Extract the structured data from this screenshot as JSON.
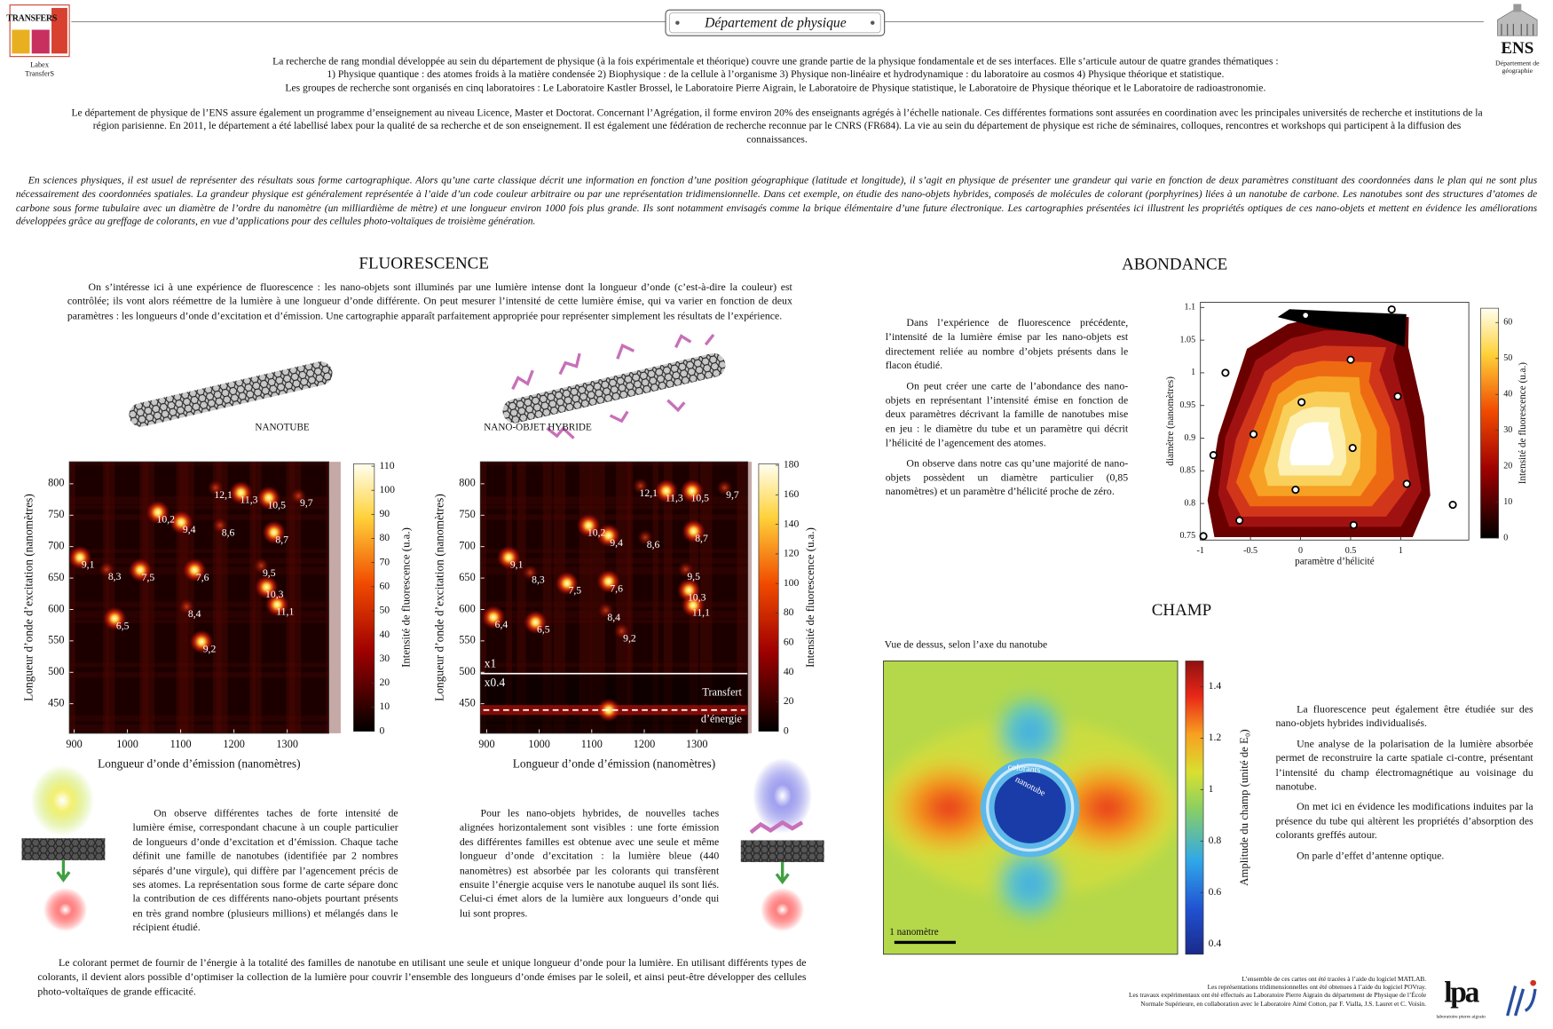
{
  "header": {
    "title": "Département de physique",
    "left_logo": {
      "mark": "TRANSFERS",
      "caption": [
        "Labex",
        "TransferS"
      ]
    },
    "right_logo": {
      "mark": "ENS",
      "caption": [
        "Département de",
        "géographie"
      ]
    }
  },
  "intro": {
    "paragraphs": [
      "La recherche de rang mondial développée au sein du département de physique (à la fois expérimentale et théorique) couvre une grande partie de la physique fondamentale et de ses interfaces. Elle s’articule autour de quatre grandes thématiques :",
      "1) Physique quantique : des atomes froids à la matière condensée 2) Biophysique : de la cellule à l’organisme 3)  Physique non-linéaire et hydrodynamique : du laboratoire au cosmos 4)  Physique théorique et statistique.",
      "Les groupes de recherche sont organisés en cinq laboratoires : Le Laboratoire Kastler Brossel, le Laboratoire Pierre Aigrain, le Laboratoire de Physique statistique, le Laboratoire de Physique théorique et le Laboratoire de radioastronomie.",
      "Le département de physique de l’ENS assure également un programme d’enseignement au niveau Licence, Master et Doctorat. Concernant l’Agrégation, il forme environ 20% des enseignants agrégés à l’échelle nationale. Ces différentes formations sont assurées en coordination avec les principales universités de recherche et institutions de la région parisienne. En 2011, le département a été labellisé labex pour la qualité de sa recherche et de son enseignement. Il est également une fédération de recherche reconnue par le CNRS (FR684). La vie au sein du département de physique est riche de séminaires, colloques, rencontres et workshops qui participent à la diffusion des connaissances."
    ],
    "italic": "En sciences physiques, il est usuel de représenter des résultats sous forme cartographique. Alors qu’une carte classique décrit une information en fonction d’une position géographique (latitude et longitude), il s’agit en physique de présenter une grandeur qui varie en fonction de deux paramètres constituant des coordonnées dans le plan qui ne sont plus nécessairement des coordonnées spatiales. La grandeur physique est généralement représentée à l’aide d’un code couleur arbitraire ou par une représentation tridimensionnelle. Dans cet exemple, on étudie des nano-objets hybrides, composés de molécules de colorant (porphyrines) liées à un nanotube de carbone. Les nanotubes sont des structures d’atomes de carbone sous forme tubulaire avec un diamètre de l’ordre du nanomètre (un milliardième de mètre) et une longueur environ 1000 fois plus grande. Ils sont notamment envisagés comme la brique  élémentaire d’une future électronique. Les cartographies présentées ici illustrent les propriétés optiques de ces nano-objets et mettent en évidence les améliorations développées grâce au greffage de colorants, en vue d’applications pour des cellules photo-voltaïques de troisième génération."
  },
  "fluorescence": {
    "title": "FLUORESCENCE",
    "text": "On s’intéresse ici à une expérience de fluorescence : les nano-objets sont illuminés par une lumière intense dont la longueur d’onde (c’est-à-dire la couleur) est contrôlée; ils vont alors réémettre de la lumière à une longueur d’onde différente. On peut mesurer l’intensité de cette lumière émise, qui va varier en fonction de deux paramètres : les longueurs d’onde d’excitation et d’émission. Une cartographie apparaît parfaitement appropriée pour représenter simplement les résultats de l’expérience.",
    "labels": [
      "NANOTUBE",
      "NANO-OBJET HYBRIDE"
    ],
    "captions": [
      "On observe différentes taches de forte intensité de lumière émise, correspondant chacune à un couple particulier de longueurs d’onde d’excitation et d’émission. Chaque tache définit une famille de nanotubes (identifiée par 2 nombres séparés d’une virgule), qui diffère par l’agencement précis de ses atomes. La représentation sous forme de carte sépare donc la contribution de ces différents nano-objets pourtant présents en très grand nombre (plusieurs millions) et mélangés dans le récipient étudié.",
      "Pour les nano-objets hybrides, de nouvelles taches alignées horizontalement sont visibles : une forte émission des différentes familles est obtenue avec une seule et même longueur d’onde d’excitation : la lumière bleue (440 nanomètres) est absorbée par les colorants qui transfèrent ensuite l’énergie acquise vers le nanotube auquel ils sont liés. Celui-ci émet alors de la lumière aux longueurs d’onde qui lui sont propres."
    ],
    "conclusion": "Le colorant permet de fournir de l’énergie à la totalité des familles de nanotube en utilisant une seule et unique longueur d’onde pour la lumière. En utilisant différents types de colorants, il devient alors possible d’optimiser la collection de la lumière pour couvrir l’ensemble des longueurs d’onde émises par le soleil, et ainsi peut-être développer des cellules photo-voltaïques de grande efficacité."
  },
  "abondance": {
    "title": "ABONDANCE",
    "paragraphs": [
      "Dans l’expérience de fluorescence précédente, l’intensité de la lumière émise par les nano-objets est directement reliée au nombre d’objets présents dans le flacon étudié.",
      "On peut créer une carte de l’abondance des nano-objets en représentant l’intensité émise en fonction de deux paramètres décrivant la famille de nanotubes mise en jeu : le diamètre du tube et un paramètre qui décrit l’hélicité de l’agencement des atomes.",
      "On observe dans notre cas qu’une majorité de nano-objets possèdent un diamètre particulier (0,85 nanomètres) et un paramètre d’hélicité proche de zéro."
    ]
  },
  "champ": {
    "title": "CHAMP",
    "subtitle": "Vue de dessus, selon l’axe du nanotube",
    "paragraphs": [
      "La fluorescence peut également être étudiée sur des nano-objets hybrides individualisés.",
      "Une analyse de la polarisation de la lumière absorbée permet de reconstruire la carte spatiale ci-contre, présentant l’intensité du champ électromagnétique au voisinage du nanotube.",
      "On met ici en évidence les modifications induites par la présence du tube qui altèrent les propriétés d’absorption des colorants greffés autour.",
      "On parle d’effet d’antenne optique."
    ]
  },
  "footer": {
    "credits": [
      "L’ensemble de ces cartes ont été tracées à l’aide du logiciel MATLAB.",
      "Les représentations tridimensionnelles ont été obtenues à l’aide du logiciel POVray.",
      "Les travaux expérimentaux ont été effectués au Laboratoire Pierre Aigrain du département de Physique de l’École",
      "Normale Supérieure, en collaboration avec le Laboratoire Aimé Cotton, par F. Vialla, J.S. Lauret et C. Voisin."
    ],
    "logo": "lpa",
    "logo_caption": "laboratoire pierre aigrain"
  },
  "chart_data": [
    {
      "type": "heatmap",
      "xlabel": "Longueur d’onde d’émission (nanomètres)",
      "ylabel": "Longueur d’onde d’excitation (nanomètres)",
      "xlim": [
        891,
        1378
      ],
      "ylim": [
        403,
        835
      ],
      "xticks": [
        900,
        1000,
        1100,
        1200,
        1300
      ],
      "yticks": [
        450,
        500,
        550,
        600,
        650,
        700,
        750,
        800
      ],
      "colorbar": {
        "label": "Intensité de fluorescence (u.a.)",
        "lim": [
          0,
          111
        ],
        "ticks": [
          0,
          10,
          20,
          30,
          40,
          50,
          60,
          70,
          80,
          90,
          100,
          110
        ]
      },
      "peaks": [
        {
          "label": "12,1",
          "x": 1180,
          "y": 781
        },
        {
          "label": "11,3",
          "x": 1228,
          "y": 773
        },
        {
          "label": "10,5",
          "x": 1280,
          "y": 765
        },
        {
          "label": "9,7",
          "x": 1336,
          "y": 768
        },
        {
          "label": "10,2",
          "x": 1072,
          "y": 742
        },
        {
          "label": "9,4",
          "x": 1116,
          "y": 726
        },
        {
          "label": "8,6",
          "x": 1189,
          "y": 721
        },
        {
          "label": "8,7",
          "x": 1290,
          "y": 710
        },
        {
          "label": "9,1",
          "x": 926,
          "y": 670
        },
        {
          "label": "8,3",
          "x": 976,
          "y": 651
        },
        {
          "label": "7,5",
          "x": 1039,
          "y": 650
        },
        {
          "label": "7,6",
          "x": 1141,
          "y": 650
        },
        {
          "label": "9,5",
          "x": 1266,
          "y": 657
        },
        {
          "label": "10,3",
          "x": 1276,
          "y": 623
        },
        {
          "label": "11,1",
          "x": 1296,
          "y": 595
        },
        {
          "label": "8,4",
          "x": 1126,
          "y": 592
        },
        {
          "label": "6,5",
          "x": 991,
          "y": 573
        },
        {
          "label": "9,2",
          "x": 1154,
          "y": 536
        }
      ]
    },
    {
      "type": "heatmap",
      "xlabel": "Longueur d’onde d’émission (nanomètres)",
      "ylabel": "Longueur d’onde d’excitation (nanomètres)",
      "xlim": [
        888,
        1397
      ],
      "ylim": [
        403,
        835
      ],
      "xticks": [
        900,
        1000,
        1100,
        1200,
        1300
      ],
      "yticks": [
        450,
        500,
        550,
        600,
        650,
        700,
        750,
        800
      ],
      "colorbar": {
        "label": "Intensité de fluorescence (u.a.)",
        "lim": [
          0,
          181
        ],
        "ticks": [
          0,
          20,
          40,
          60,
          80,
          100,
          120,
          140,
          160,
          180
        ]
      },
      "peaks": [
        {
          "label": "12,1",
          "x": 1208,
          "y": 784
        },
        {
          "label": "11,3",
          "x": 1257,
          "y": 776
        },
        {
          "label": "10,5",
          "x": 1306,
          "y": 776
        },
        {
          "label": "9,7",
          "x": 1368,
          "y": 781
        },
        {
          "label": "10,2",
          "x": 1109,
          "y": 721
        },
        {
          "label": "9,4",
          "x": 1147,
          "y": 705
        },
        {
          "label": "8,6",
          "x": 1217,
          "y": 702
        },
        {
          "label": "8,7",
          "x": 1309,
          "y": 712
        },
        {
          "label": "9,1",
          "x": 957,
          "y": 670
        },
        {
          "label": "8,3",
          "x": 998,
          "y": 646
        },
        {
          "label": "7,5",
          "x": 1068,
          "y": 629
        },
        {
          "label": "7,6",
          "x": 1147,
          "y": 632
        },
        {
          "label": "9,5",
          "x": 1294,
          "y": 651
        },
        {
          "label": "10,3",
          "x": 1300,
          "y": 618
        },
        {
          "label": "11,1",
          "x": 1308,
          "y": 594
        },
        {
          "label": "8,4",
          "x": 1142,
          "y": 586
        },
        {
          "label": "6,4",
          "x": 928,
          "y": 575
        },
        {
          "label": "6,5",
          "x": 1008,
          "y": 567
        },
        {
          "label": "9,2",
          "x": 1172,
          "y": 553
        }
      ],
      "scale_split": 498,
      "scale_labels": [
        "x1",
        "x0.4"
      ],
      "transfer_line": 440,
      "transfer_label": [
        "Transfert",
        "d’énergie"
      ]
    },
    {
      "type": "contour",
      "xlabel": "paramètre d’hélicité",
      "ylabel": "diamètre (nanomètres)",
      "xlim": [
        -1,
        1.68
      ],
      "ylim": [
        0.744,
        1.108
      ],
      "xticks": [
        -1,
        -0.5,
        0,
        0.5,
        1
      ],
      "yticks": [
        0.75,
        0.8,
        0.85,
        0.9,
        0.95,
        1,
        1.05,
        1.1
      ],
      "colorbar": {
        "label": "Intensité de fluorescence (u.a.)",
        "lim": [
          0,
          64
        ],
        "ticks": [
          0,
          10,
          20,
          30,
          40,
          50,
          60
        ]
      },
      "points": {
        "x": [
          0.05,
          0.91,
          0.5,
          -0.75,
          0.97,
          0.01,
          -0.47,
          -0.87,
          0.52,
          1.06,
          -0.05,
          1.52,
          -0.61,
          0.53,
          -0.97
        ],
        "y": [
          1.088,
          1.097,
          1.02,
          1.0,
          0.964,
          0.955,
          0.906,
          0.874,
          0.885,
          0.83,
          0.821,
          0.798,
          0.774,
          0.767,
          0.75
        ]
      }
    },
    {
      "type": "field",
      "colorbar": {
        "label": "Amplitude du champ (unité de E₀)",
        "lim": [
          0.36,
          1.5
        ],
        "ticks": [
          0.4,
          0.6,
          0.8,
          1,
          1.2,
          1.4
        ]
      },
      "annotations": [
        "colorants",
        "nanotube"
      ],
      "scale_label": "1 nanomètre"
    }
  ]
}
